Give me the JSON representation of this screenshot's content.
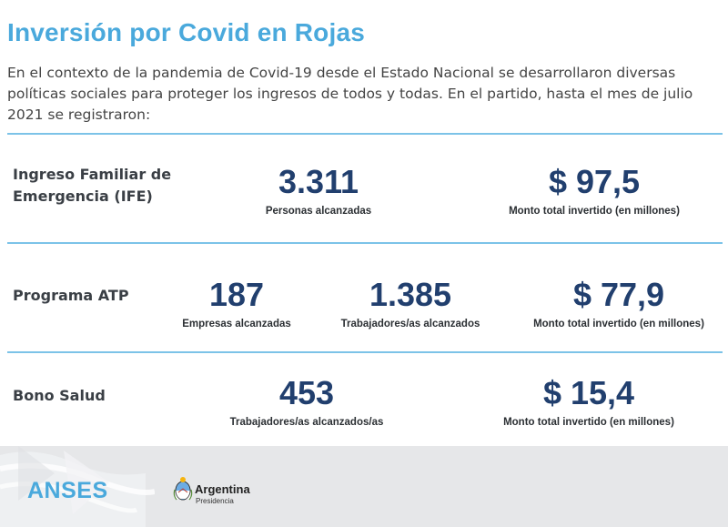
{
  "header": {
    "title": "Inversión por Covid en Rojas",
    "intro": "En el contexto de la pandemia de Covid-19 desde el Estado Nacional se desarrollaron diversas políticas sociales para proteger los ingresos de todos y todas. En el partido, hasta el mes de julio 2021 se registraron:"
  },
  "rows": [
    {
      "label_line1": "Ingreso Familiar de",
      "label_line2": "Emergencia (IFE)",
      "stats": [
        {
          "value": "3.311",
          "caption": "Personas alcanzadas"
        },
        {
          "value": "$ 97,5",
          "caption": "Monto total invertido (en millones)"
        }
      ]
    },
    {
      "label": "Programa ATP",
      "stats": [
        {
          "value": "187",
          "caption": "Empresas alcanzadas"
        },
        {
          "value": "1.385",
          "caption": "Trabajadores/as alcanzados"
        },
        {
          "value": "$ 77,9",
          "caption": "Monto total invertido (en millones)"
        }
      ]
    },
    {
      "label": "Bono Salud",
      "stats": [
        {
          "value": "453",
          "caption": "Trabajadores/as alcanzados/as"
        },
        {
          "value": "$ 15,4",
          "caption": "Monto total invertido (en millones)"
        }
      ]
    }
  ],
  "footer": {
    "anses_logo": "ANSES",
    "argentina_name": "Argentina",
    "argentina_sub": "Presidencia",
    "seal_icon": "argentina-coat-of-arms-icon"
  },
  "colors": {
    "title": "#4aa9dc",
    "numbers": "#213f6e",
    "divider": "#7cc3e8",
    "footer_bg": "#e6e7e9"
  }
}
